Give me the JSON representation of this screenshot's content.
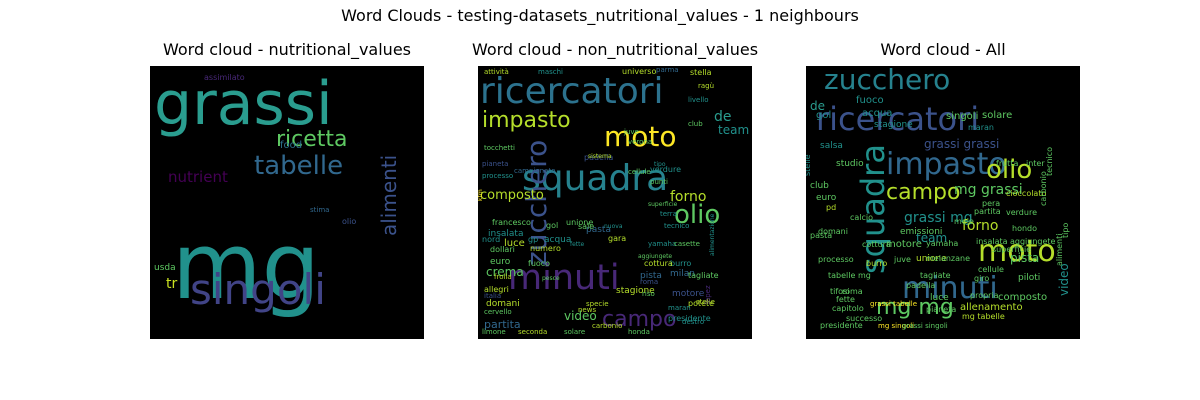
{
  "figure": {
    "suptitle": "Word Clouds - testing-datasets_nutritional_values - 1 neighbours"
  },
  "chart_data": [
    {
      "type": "wordcloud",
      "title": "Word cloud - nutritional_values",
      "background": "#000000",
      "words": [
        {
          "text": "grassi",
          "color": "#2a9d8f",
          "weight": 1.0
        },
        {
          "text": "mg",
          "color": "#21918c",
          "weight": 0.98
        },
        {
          "text": "singoli",
          "color": "#414487",
          "weight": 0.62
        },
        {
          "text": "tabelle",
          "color": "#31688e",
          "weight": 0.38
        },
        {
          "text": "ricetta",
          "color": "#5ec962",
          "weight": 0.34
        },
        {
          "text": "alimenti",
          "color": "#3b528b",
          "weight": 0.28
        },
        {
          "text": "nutrient",
          "color": "#440154",
          "weight": 0.14
        },
        {
          "text": "tr",
          "color": "#c8e020",
          "weight": 0.13
        },
        {
          "text": "food",
          "color": "#2c728e",
          "weight": 0.1
        },
        {
          "text": "usda",
          "color": "#5ec962",
          "weight": 0.08
        },
        {
          "text": "assimilato",
          "color": "#482878",
          "weight": 0.06
        },
        {
          "text": "olio",
          "color": "#3b528b",
          "weight": 0.05
        },
        {
          "text": "stima",
          "color": "#31688e",
          "weight": 0.04
        }
      ]
    },
    {
      "type": "wordcloud",
      "title": "Word cloud - non_nutritional_values",
      "background": "#000000",
      "words": [
        {
          "text": "ricercatori",
          "color": "#2c728e",
          "weight": 1.0
        },
        {
          "text": "squadra",
          "color": "#26828e",
          "weight": 0.9
        },
        {
          "text": "minuti",
          "color": "#482878",
          "weight": 0.88
        },
        {
          "text": "zucchero",
          "color": "#3b528b",
          "weight": 0.7
        },
        {
          "text": "moto",
          "color": "#fde725",
          "weight": 0.65
        },
        {
          "text": "impasto",
          "color": "#b5de2b",
          "weight": 0.55
        },
        {
          "text": "olio",
          "color": "#5ec962",
          "weight": 0.6
        },
        {
          "text": "campo",
          "color": "#482878",
          "weight": 0.5
        },
        {
          "text": "composto",
          "color": "#b5de2b",
          "weight": 0.22
        },
        {
          "text": "forno",
          "color": "#b5de2b",
          "weight": 0.22
        },
        {
          "text": "de",
          "color": "#2a9d8f",
          "weight": 0.22
        },
        {
          "text": "team",
          "color": "#21918c",
          "weight": 0.2
        },
        {
          "text": "crema",
          "color": "#5ec962",
          "weight": 0.16
        },
        {
          "text": "video",
          "color": "#5ec962",
          "weight": 0.15
        },
        {
          "text": "partita",
          "color": "#31688e",
          "weight": 0.13
        },
        {
          "text": "luce",
          "color": "#b5de2b",
          "weight": 0.12
        },
        {
          "text": "euro",
          "color": "#5ec962",
          "weight": 0.11
        },
        {
          "text": "insalata",
          "color": "#21918c",
          "weight": 0.11
        },
        {
          "text": "acqua",
          "color": "#21918c",
          "weight": 0.11
        },
        {
          "text": "pasta",
          "color": "#31688e",
          "weight": 0.1
        },
        {
          "text": "verdure",
          "color": "#21918c",
          "weight": 0.09
        },
        {
          "text": "stagione",
          "color": "#b5de2b",
          "weight": 0.09
        },
        {
          "text": "pista",
          "color": "#31688e",
          "weight": 0.09
        },
        {
          "text": "milan",
          "color": "#31688e",
          "weight": 0.09
        },
        {
          "text": "motore",
          "color": "#3b528b",
          "weight": 0.09
        },
        {
          "text": "domani",
          "color": "#b5de2b",
          "weight": 0.09
        },
        {
          "text": "allegri",
          "color": "#b5de2b",
          "weight": 0.08
        },
        {
          "text": "francesco",
          "color": "#5ec962",
          "weight": 0.08
        },
        {
          "text": "unione",
          "color": "#5ec962",
          "weight": 0.08
        },
        {
          "text": "gara",
          "color": "#b5de2b",
          "weight": 0.08
        },
        {
          "text": "sale",
          "color": "#5ec962",
          "weight": 0.08
        },
        {
          "text": "burro",
          "color": "#21918c",
          "weight": 0.08
        },
        {
          "text": "tagliate",
          "color": "#5ec962",
          "weight": 0.08
        },
        {
          "text": "potete",
          "color": "#b5de2b",
          "weight": 0.07
        },
        {
          "text": "presidente",
          "color": "#21918c",
          "weight": 0.07
        },
        {
          "text": "cottura",
          "color": "#b5de2b",
          "weight": 0.07
        },
        {
          "text": "universo",
          "color": "#b5de2b",
          "weight": 0.07
        },
        {
          "text": "stella",
          "color": "#b5de2b",
          "weight": 0.07
        },
        {
          "text": "numero",
          "color": "#b5de2b",
          "weight": 0.07
        },
        {
          "text": "gol",
          "color": "#5ec962",
          "weight": 0.07
        },
        {
          "text": "gp",
          "color": "#21918c",
          "weight": 0.07
        },
        {
          "text": "nord",
          "color": "#21918c",
          "weight": 0.06
        },
        {
          "text": "dollari",
          "color": "#5ec962",
          "weight": 0.06
        },
        {
          "text": "fuoco",
          "color": "#5ec962",
          "weight": 0.06
        },
        {
          "text": "padella",
          "color": "#3b528b",
          "weight": 0.06
        },
        {
          "text": "pianeta",
          "color": "#3b528b",
          "weight": 0.06
        },
        {
          "text": "processo",
          "color": "#21918c",
          "weight": 0.06
        },
        {
          "text": "punti",
          "color": "#5ec962",
          "weight": 0.06
        },
        {
          "text": "cellule",
          "color": "#5ec962",
          "weight": 0.06
        },
        {
          "text": "tecnico",
          "color": "#21918c",
          "weight": 0.06
        },
        {
          "text": "campionato",
          "color": "#31688e",
          "weight": 0.06
        },
        {
          "text": "tocchetti",
          "color": "#5ec962",
          "weight": 0.05
        },
        {
          "text": "attività",
          "color": "#b5de2b",
          "weight": 0.05
        },
        {
          "text": "club",
          "color": "#5ec962",
          "weight": 0.05
        },
        {
          "text": "livello",
          "color": "#21918c",
          "weight": 0.05
        },
        {
          "text": "ragù",
          "color": "#b5de2b",
          "weight": 0.05
        },
        {
          "text": "juve",
          "color": "#5ec962",
          "weight": 0.05
        },
        {
          "text": "verona",
          "color": "#5ec962",
          "weight": 0.05
        },
        {
          "text": "yamaha",
          "color": "#21918c",
          "weight": 0.05
        },
        {
          "text": "maschi",
          "color": "#21918c",
          "weight": 0.05
        },
        {
          "text": "parma",
          "color": "#31688e",
          "weight": 0.05
        },
        {
          "text": "riso",
          "color": "#5ec962",
          "weight": 0.05
        },
        {
          "text": "terra",
          "color": "#21918c",
          "weight": 0.05
        },
        {
          "text": "casette",
          "color": "#5ec962",
          "weight": 0.05
        },
        {
          "text": "roma",
          "color": "#3b528b",
          "weight": 0.05
        },
        {
          "text": "frolla",
          "color": "#b5de2b",
          "weight": 0.05
        },
        {
          "text": "specie",
          "color": "#b5de2b",
          "weight": 0.05
        },
        {
          "text": "italia",
          "color": "#3b528b",
          "weight": 0.05
        },
        {
          "text": "cervello",
          "color": "#5ec962",
          "weight": 0.05
        },
        {
          "text": "carbonio",
          "color": "#b5de2b",
          "weight": 0.05
        },
        {
          "text": "seconda",
          "color": "#b5de2b",
          "weight": 0.05
        },
        {
          "text": "solare",
          "color": "#5ec962",
          "weight": 0.05
        },
        {
          "text": "honda",
          "color": "#5ec962",
          "weight": 0.05
        },
        {
          "text": "destro",
          "color": "#21918c",
          "weight": 0.05
        },
        {
          "text": "limone",
          "color": "#5ec962",
          "weight": 0.05
        },
        {
          "text": "news",
          "color": "#b5de2b",
          "weight": 0.05
        },
        {
          "text": "maran",
          "color": "#21918c",
          "weight": 0.05
        },
        {
          "text": "stelle",
          "color": "#b5de2b",
          "weight": 0.05
        },
        {
          "text": "lopez",
          "color": "#482878",
          "weight": 0.04
        },
        {
          "text": "sistema",
          "color": "#b5de2b",
          "weight": 0.04
        },
        {
          "text": "nuova",
          "color": "#21918c",
          "weight": 0.04
        },
        {
          "text": "aggiungete",
          "color": "#5ec962",
          "weight": 0.04
        },
        {
          "text": "superficie",
          "color": "#5ec962",
          "weight": 0.04
        },
        {
          "text": "pesce",
          "color": "#5ec962",
          "weight": 0.04
        },
        {
          "text": "fette",
          "color": "#21918c",
          "weight": 0.04
        },
        {
          "text": "tipo",
          "color": "#21918c",
          "weight": 0.04
        },
        {
          "text": "ktm",
          "color": "#fde725",
          "weight": 0.04
        },
        {
          "text": "alimentazione",
          "color": "#21918c",
          "weight": 0.04
        }
      ]
    },
    {
      "type": "wordcloud",
      "title": "Word cloud - All",
      "background": "#000000",
      "words": [
        {
          "text": "ricercatori",
          "color": "#3b528b",
          "weight": 1.0
        },
        {
          "text": "zucchero",
          "color": "#26828e",
          "weight": 0.78
        },
        {
          "text": "squadra",
          "color": "#21918c",
          "weight": 0.85
        },
        {
          "text": "minuti",
          "color": "#31688e",
          "weight": 0.75
        },
        {
          "text": "impasto",
          "color": "#31688e",
          "weight": 0.62
        },
        {
          "text": "olio",
          "color": "#b5de2b",
          "weight": 0.62
        },
        {
          "text": "moto",
          "color": "#b5de2b",
          "weight": 0.7
        },
        {
          "text": "campo",
          "color": "#b5de2b",
          "weight": 0.45
        },
        {
          "text": "grassi mg",
          "color": "#21918c",
          "weight": 0.32
        },
        {
          "text": "mg grassi",
          "color": "#5ec962",
          "weight": 0.3
        },
        {
          "text": "grassi grassi",
          "color": "#3b528b",
          "weight": 0.25
        },
        {
          "text": "mg mg",
          "color": "#5ec962",
          "weight": 0.42
        },
        {
          "text": "forno",
          "color": "#b5de2b",
          "weight": 0.22
        },
        {
          "text": "video",
          "color": "#21918c",
          "weight": 0.2
        },
        {
          "text": "pista",
          "color": "#5ec962",
          "weight": 0.2
        },
        {
          "text": "team",
          "color": "#21918c",
          "weight": 0.15
        },
        {
          "text": "de",
          "color": "#2a9d8f",
          "weight": 0.15
        },
        {
          "text": "fuoco",
          "color": "#21918c",
          "weight": 0.12
        },
        {
          "text": "gol",
          "color": "#21918c",
          "weight": 0.11
        },
        {
          "text": "acqua",
          "color": "#21918c",
          "weight": 0.1
        },
        {
          "text": "motore",
          "color": "#5ec962",
          "weight": 0.1
        },
        {
          "text": "singoli",
          "color": "#5ec962",
          "weight": 0.1
        },
        {
          "text": "allenamento",
          "color": "#b5de2b",
          "weight": 0.09
        },
        {
          "text": "composto",
          "color": "#5ec962",
          "weight": 0.09
        },
        {
          "text": "solare",
          "color": "#5ec962",
          "weight": 0.08
        },
        {
          "text": "stagione",
          "color": "#21918c",
          "weight": 0.08
        },
        {
          "text": "salsa",
          "color": "#21918c",
          "weight": 0.08
        },
        {
          "text": "club",
          "color": "#5ec962",
          "weight": 0.08
        },
        {
          "text": "euro",
          "color": "#5ec962",
          "weight": 0.08
        },
        {
          "text": "emissioni",
          "color": "#5ec962",
          "weight": 0.07
        },
        {
          "text": "studio",
          "color": "#5ec962",
          "weight": 0.07
        },
        {
          "text": "unione",
          "color": "#b5de2b",
          "weight": 0.07
        },
        {
          "text": "processo",
          "color": "#5ec962",
          "weight": 0.07
        },
        {
          "text": "tabelle mg",
          "color": "#5ec962",
          "weight": 0.07
        },
        {
          "text": "presidente",
          "color": "#5ec962",
          "weight": 0.07
        },
        {
          "text": "grassi tabelle",
          "color": "#fde725",
          "weight": 0.06
        },
        {
          "text": "mg singoli",
          "color": "#fde725",
          "weight": 0.06
        },
        {
          "text": "mg tabelle",
          "color": "#b5de2b",
          "weight": 0.06
        },
        {
          "text": "grassi singoli",
          "color": "#5ec962",
          "weight": 0.06
        },
        {
          "text": "tagliate",
          "color": "#5ec962",
          "weight": 0.06
        },
        {
          "text": "luce",
          "color": "#5ec962",
          "weight": 0.06
        },
        {
          "text": "giro",
          "color": "#5ec962",
          "weight": 0.06
        },
        {
          "text": "piloti",
          "color": "#5ec962",
          "weight": 0.06
        },
        {
          "text": "aggiungete",
          "color": "#5ec962",
          "weight": 0.06
        },
        {
          "text": "superficie",
          "color": "#5ec962",
          "weight": 0.06
        },
        {
          "text": "tifosi",
          "color": "#5ec962",
          "weight": 0.06
        },
        {
          "text": "cottura",
          "color": "#5ec962",
          "weight": 0.05
        },
        {
          "text": "burro",
          "color": "#b5de2b",
          "weight": 0.05
        },
        {
          "text": "partita",
          "color": "#5ec962",
          "weight": 0.05
        },
        {
          "text": "hondo",
          "color": "#5ec962",
          "weight": 0.05
        },
        {
          "text": "verdure",
          "color": "#5ec962",
          "weight": 0.05
        },
        {
          "text": "yamaha",
          "color": "#5ec962",
          "weight": 0.05
        },
        {
          "text": "cioccolato",
          "color": "#b5de2b",
          "weight": 0.05
        },
        {
          "text": "melanzane",
          "color": "#5ec962",
          "weight": 0.05
        },
        {
          "text": "pera",
          "color": "#5ec962",
          "weight": 0.05
        },
        {
          "text": "frutta",
          "color": "#5ec962",
          "weight": 0.05
        },
        {
          "text": "inter",
          "color": "#5ec962",
          "weight": 0.05
        },
        {
          "text": "mele",
          "color": "#5ec962",
          "weight": 0.05
        },
        {
          "text": "maran",
          "color": "#21918c",
          "weight": 0.05
        },
        {
          "text": "stelle",
          "color": "#21918c",
          "weight": 0.05
        },
        {
          "text": "pd",
          "color": "#b5de2b",
          "weight": 0.05
        },
        {
          "text": "roma",
          "color": "#5ec962",
          "weight": 0.05
        },
        {
          "text": "capitolo",
          "color": "#5ec962",
          "weight": 0.05
        },
        {
          "text": "successo",
          "color": "#5ec962",
          "weight": 0.05
        },
        {
          "text": "fette",
          "color": "#5ec962",
          "weight": 0.05
        },
        {
          "text": "tecnico",
          "color": "#5ec962",
          "weight": 0.05
        },
        {
          "text": "calcio",
          "color": "#5ec962",
          "weight": 0.05
        },
        {
          "text": "pasta",
          "color": "#5ec962",
          "weight": 0.05
        },
        {
          "text": "alimenti",
          "color": "#5ec962",
          "weight": 0.05
        },
        {
          "text": "tipo",
          "color": "#5ec962",
          "weight": 0.05
        },
        {
          "text": "carbonio",
          "color": "#5ec962",
          "weight": 0.05
        },
        {
          "text": "domani",
          "color": "#5ec962",
          "weight": 0.05
        },
        {
          "text": "juve",
          "color": "#5ec962",
          "weight": 0.05
        },
        {
          "text": "padella",
          "color": "#5ec962",
          "weight": 0.05
        },
        {
          "text": "pianeta",
          "color": "#5ec962",
          "weight": 0.05
        },
        {
          "text": "propria",
          "color": "#5ec962",
          "weight": 0.05
        },
        {
          "text": "insalata",
          "color": "#5ec962",
          "weight": 0.05
        },
        {
          "text": "cellule",
          "color": "#5ec962",
          "weight": 0.05
        }
      ]
    }
  ]
}
